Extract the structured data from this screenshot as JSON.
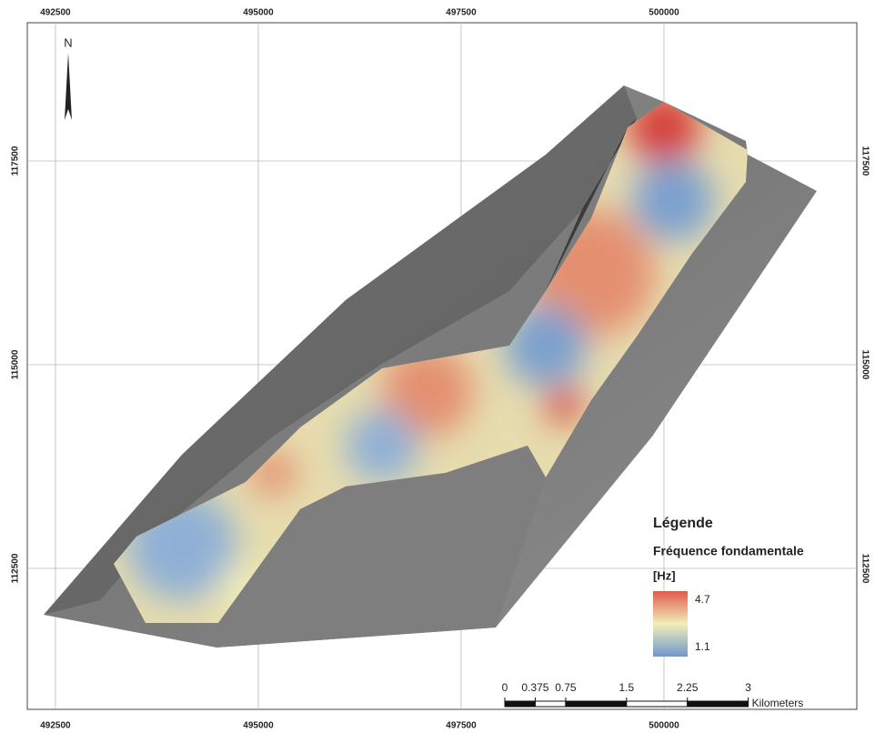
{
  "map": {
    "north": "N",
    "xlim": [
      492153,
      502377
    ],
    "ylim": [
      110770,
      119196
    ],
    "xticks": [
      492500,
      495000,
      497500,
      500000
    ],
    "yticks": [
      112500,
      115000,
      117500
    ],
    "legend": {
      "title": "Légende",
      "layer": "Fréquence fondamentale",
      "unit": "[Hz]",
      "high": 4.7,
      "low": 1.1
    },
    "scale_bar": {
      "ticks": [
        0,
        0.375,
        0.75,
        1.5,
        2.25,
        3
      ],
      "unit": "Kilometers"
    }
  }
}
